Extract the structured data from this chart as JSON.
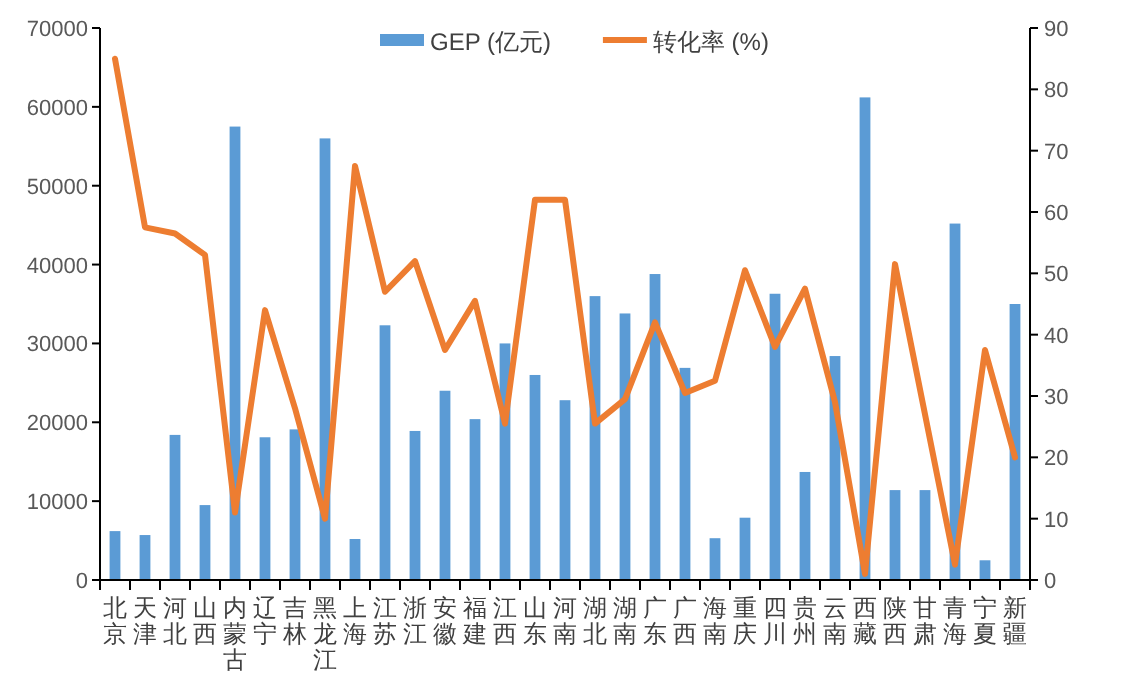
{
  "chart_data": {
    "type": "bar",
    "categories": [
      "北京",
      "天津",
      "河北",
      "山西",
      "内蒙古",
      "辽宁",
      "吉林",
      "黑龙江",
      "上海",
      "江苏",
      "浙江",
      "安徽",
      "福建",
      "江西",
      "山东",
      "河南",
      "湖北",
      "湖南",
      "广东",
      "广西",
      "海南",
      "重庆",
      "四川",
      "贵州",
      "云南",
      "西藏",
      "陕西",
      "甘肃",
      "青海",
      "宁夏",
      "新疆"
    ],
    "series": [
      {
        "name": "GEP (亿元)",
        "color": "#5b9bd5",
        "values": [
          6200,
          5700,
          18400,
          9500,
          57500,
          18100,
          19100,
          56000,
          5200,
          32300,
          18900,
          24000,
          20400,
          30000,
          26000,
          22800,
          36000,
          33800,
          38800,
          26900,
          5300,
          7900,
          36300,
          13700,
          28400,
          61200,
          11400,
          11400,
          45200,
          2500,
          35000
        ]
      },
      {
        "name": "转化率 (%)",
        "type": "line",
        "axis": "y2",
        "color": "#ed7d31",
        "values": [
          85,
          57.5,
          56.5,
          53,
          11,
          44,
          28,
          10,
          67.5,
          47,
          52,
          37.5,
          45.5,
          25.5,
          62,
          62,
          25.5,
          29.5,
          42,
          30.5,
          32.5,
          50.5,
          38,
          47.5,
          29,
          1,
          51.5,
          27,
          2.5,
          37.5,
          20
        ]
      }
    ],
    "ylim": [
      0,
      70000
    ],
    "yticks": [
      0,
      10000,
      20000,
      30000,
      40000,
      50000,
      60000,
      70000
    ],
    "y2lim": [
      0,
      90
    ],
    "y2ticks": [
      0,
      10,
      20,
      30,
      40,
      50,
      60,
      70,
      80,
      90
    ],
    "grid": false,
    "legend": "top",
    "marker": "none",
    "line_style": "solid"
  }
}
